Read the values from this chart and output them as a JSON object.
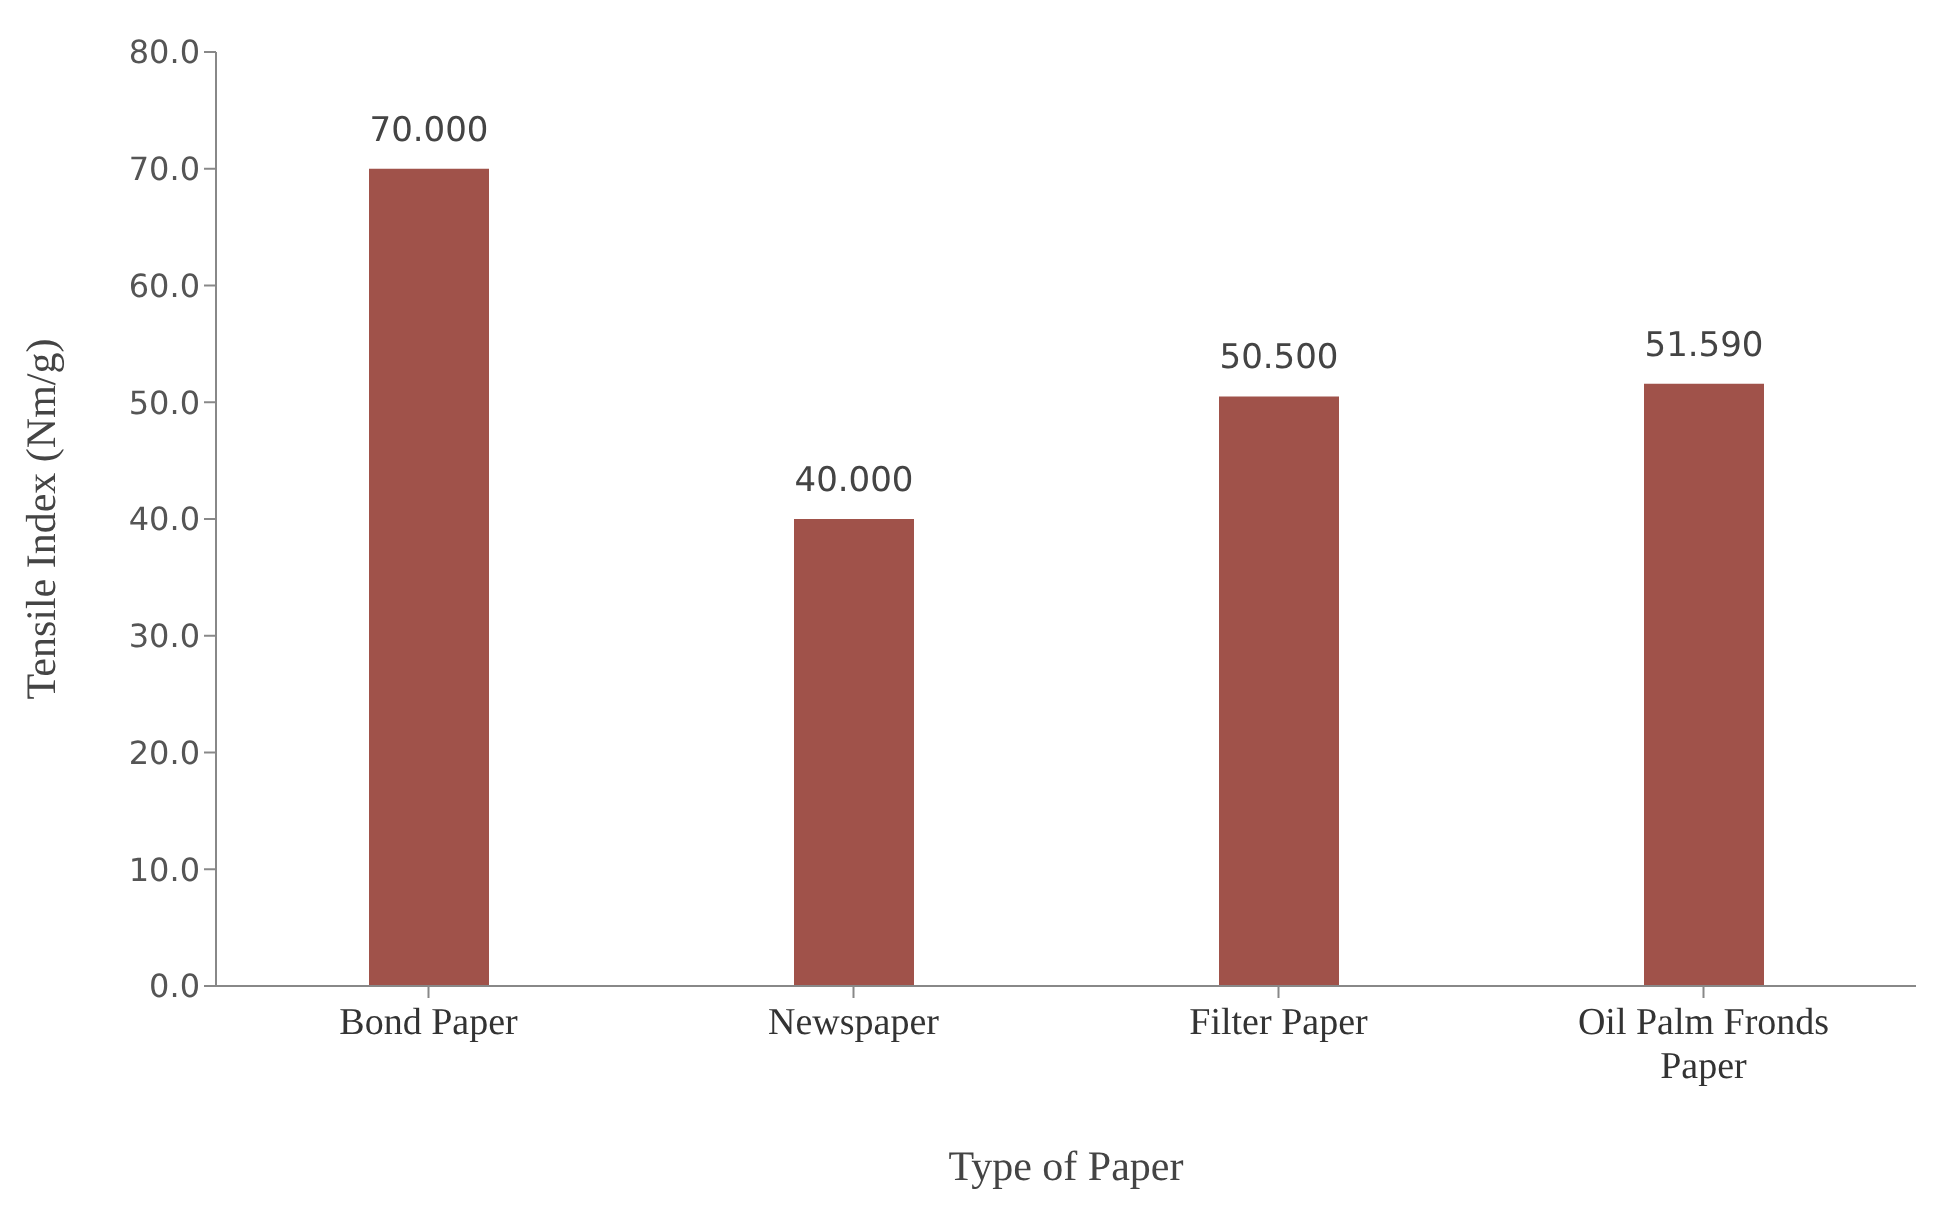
{
  "chart_data": {
    "type": "bar",
    "xlabel": "Type of Paper",
    "ylabel": "Tensile Index (Nm/g)",
    "categories": [
      "Bond Paper",
      "Newspaper",
      "Filter Paper",
      "Oil Palm Fronds Paper"
    ],
    "values": [
      70,
      40,
      50.5,
      51.59
    ],
    "value_labels": [
      "70.000",
      "40.000",
      "50.500",
      "51.590"
    ],
    "color": "#a0524a",
    "ylim": [
      0,
      80
    ],
    "yticks": [
      {
        "value": 0,
        "label": "0.0"
      },
      {
        "value": 10,
        "label": "10.0"
      },
      {
        "value": 20,
        "label": "20.0"
      },
      {
        "value": 30,
        "label": "30.0"
      },
      {
        "value": 40,
        "label": "40.0"
      },
      {
        "value": 50,
        "label": "50.0"
      },
      {
        "value": 60,
        "label": "60.0"
      },
      {
        "value": 70,
        "label": "70.0"
      },
      {
        "value": 80,
        "label": "80.0"
      }
    ],
    "grid": false,
    "legend": false
  }
}
